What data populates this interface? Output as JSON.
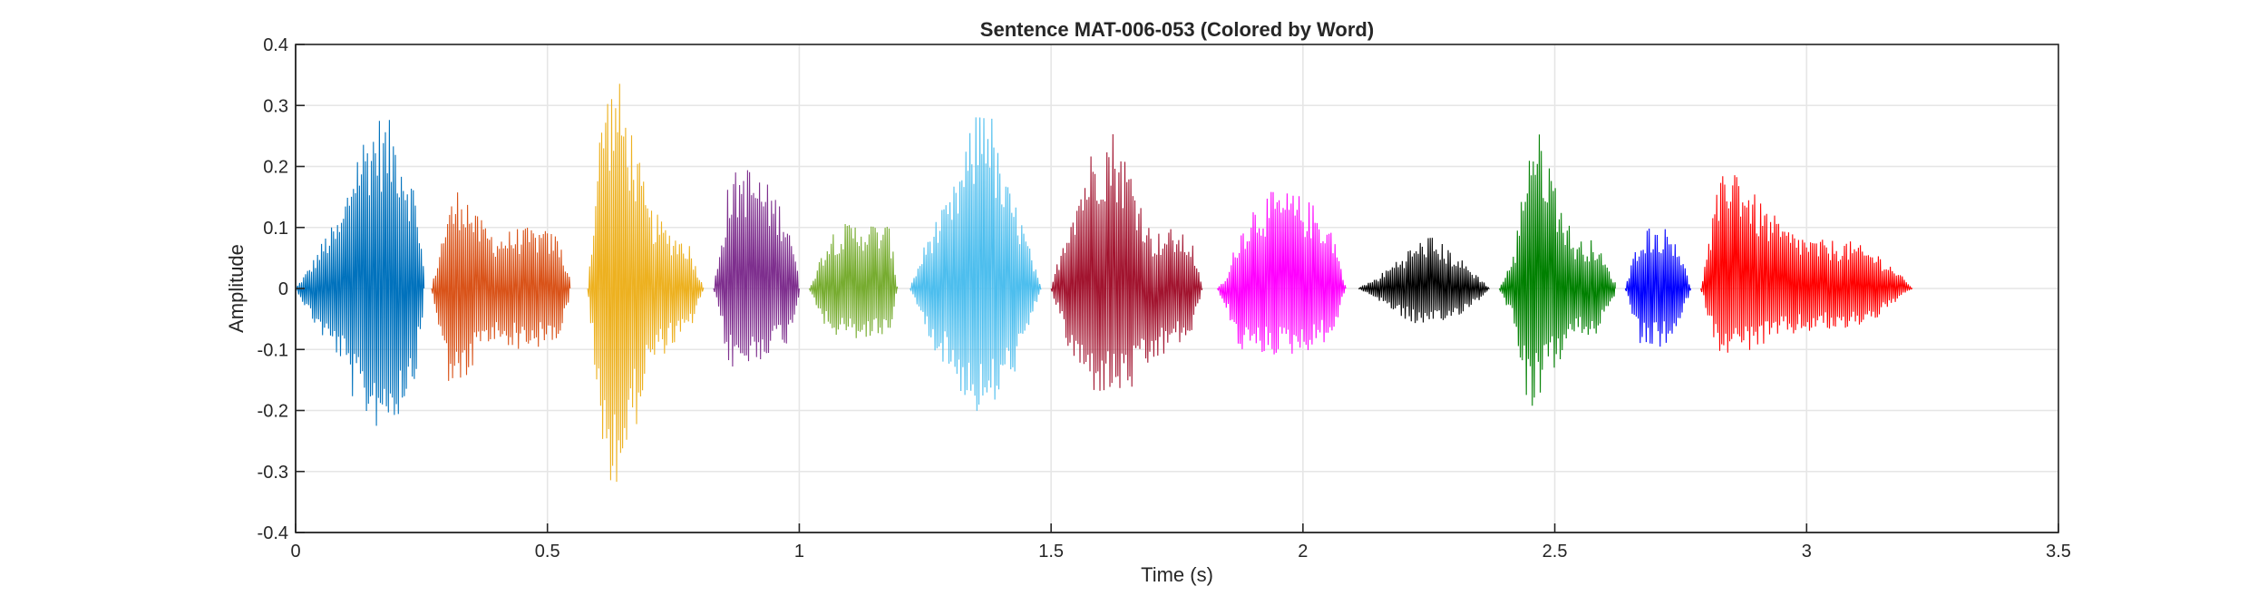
{
  "chart_data": {
    "type": "line",
    "title": "Sentence MAT-006-053 (Colored by Word)",
    "xlabel": "Time (s)",
    "ylabel": "Amplitude",
    "xlim": [
      0,
      3.5
    ],
    "ylim": [
      -0.4,
      0.4
    ],
    "xticks": [
      "0",
      "0.5",
      "1",
      "1.5",
      "2",
      "2.5",
      "3",
      "3.5"
    ],
    "yticks": [
      "0.4",
      "0.3",
      "0.2",
      "0.1",
      "0",
      "-0.1",
      "-0.2",
      "-0.3",
      "-0.4"
    ],
    "xtick_values": [
      0,
      0.5,
      1,
      1.5,
      2,
      2.5,
      3,
      3.5
    ],
    "ytick_values": [
      0.4,
      0.3,
      0.2,
      0.1,
      0,
      -0.1,
      -0.2,
      -0.3,
      -0.4
    ],
    "grid": true,
    "segments": [
      {
        "color": "#0072BD",
        "x": [
          0.0,
          0.03,
          0.06,
          0.09,
          0.12,
          0.16,
          0.2,
          0.24,
          0.255
        ],
        "ymax": [
          0.0,
          0.04,
          0.09,
          0.12,
          0.24,
          0.29,
          0.27,
          0.16,
          0.03
        ],
        "ymin": [
          0.0,
          -0.05,
          -0.09,
          -0.12,
          -0.2,
          -0.23,
          -0.22,
          -0.14,
          -0.03
        ]
      },
      {
        "color": "#D95319",
        "x": [
          0.27,
          0.3,
          0.33,
          0.36,
          0.4,
          0.44,
          0.48,
          0.52,
          0.545
        ],
        "ymax": [
          0.0,
          0.13,
          0.18,
          0.12,
          0.09,
          0.1,
          0.1,
          0.09,
          0.02
        ],
        "ymin": [
          0.0,
          -0.15,
          -0.18,
          -0.11,
          -0.09,
          -0.1,
          -0.1,
          -0.09,
          -0.02
        ]
      },
      {
        "color": "#EDB120",
        "x": [
          0.58,
          0.61,
          0.64,
          0.67,
          0.7,
          0.74,
          0.78,
          0.81
        ],
        "ymax": [
          0.0,
          0.33,
          0.35,
          0.26,
          0.14,
          0.1,
          0.08,
          0.0
        ],
        "ymin": [
          0.0,
          -0.3,
          -0.33,
          -0.25,
          -0.14,
          -0.1,
          -0.08,
          0.0
        ]
      },
      {
        "color": "#7E2F8E",
        "x": [
          0.83,
          0.86,
          0.89,
          0.92,
          0.95,
          0.98,
          1.0
        ],
        "ymax": [
          0.0,
          0.18,
          0.21,
          0.19,
          0.16,
          0.12,
          0.01
        ],
        "ymin": [
          0.0,
          -0.13,
          -0.14,
          -0.12,
          -0.1,
          -0.09,
          -0.01
        ]
      },
      {
        "color": "#77AC30",
        "x": [
          1.02,
          1.06,
          1.1,
          1.14,
          1.18,
          1.195
        ],
        "ymax": [
          0.0,
          0.095,
          0.11,
          0.11,
          0.105,
          0.0
        ],
        "ymin": [
          0.0,
          -0.08,
          -0.085,
          -0.085,
          -0.075,
          0.0
        ]
      },
      {
        "color": "#4DBEEE",
        "x": [
          1.22,
          1.26,
          1.3,
          1.34,
          1.37,
          1.4,
          1.44,
          1.48
        ],
        "ymax": [
          0.0,
          0.1,
          0.15,
          0.26,
          0.35,
          0.2,
          0.12,
          0.0
        ],
        "ymin": [
          0.0,
          -0.09,
          -0.14,
          -0.2,
          -0.22,
          -0.18,
          -0.12,
          0.0
        ]
      },
      {
        "color": "#A2142F",
        "x": [
          1.5,
          1.54,
          1.58,
          1.62,
          1.66,
          1.7,
          1.74,
          1.78,
          1.8
        ],
        "ymax": [
          0.0,
          0.14,
          0.23,
          0.27,
          0.2,
          0.09,
          0.1,
          0.08,
          0.0
        ],
        "ymin": [
          0.0,
          -0.12,
          -0.17,
          -0.18,
          -0.17,
          -0.13,
          -0.1,
          -0.08,
          0.0
        ]
      },
      {
        "color": "#FF00FF",
        "x": [
          1.83,
          1.85,
          1.87,
          1.9,
          1.94,
          1.98,
          2.02,
          2.06,
          2.085
        ],
        "ymax": [
          0.0,
          0.02,
          0.09,
          0.14,
          0.16,
          0.16,
          0.14,
          0.1,
          0.0
        ],
        "ymin": [
          0.0,
          -0.04,
          -0.1,
          -0.11,
          -0.11,
          -0.11,
          -0.1,
          -0.08,
          0.0
        ]
      },
      {
        "color": "#000000",
        "x": [
          2.11,
          2.15,
          2.2,
          2.25,
          2.3,
          2.35,
          2.37
        ],
        "ymax": [
          0.0,
          0.02,
          0.06,
          0.09,
          0.06,
          0.02,
          0.0
        ],
        "ymin": [
          0.0,
          -0.02,
          -0.05,
          -0.07,
          -0.05,
          -0.02,
          0.0
        ]
      },
      {
        "color": "#008000",
        "x": [
          2.39,
          2.42,
          2.45,
          2.48,
          2.51,
          2.54,
          2.58,
          2.62
        ],
        "ymax": [
          0.0,
          0.06,
          0.27,
          0.25,
          0.15,
          0.08,
          0.08,
          0.01
        ],
        "ymin": [
          0.0,
          -0.06,
          -0.21,
          -0.16,
          -0.12,
          -0.08,
          -0.08,
          -0.01
        ]
      },
      {
        "color": "#0000FF",
        "x": [
          2.64,
          2.67,
          2.7,
          2.74,
          2.77
        ],
        "ymax": [
          0.0,
          0.1,
          0.105,
          0.095,
          0.0
        ],
        "ymin": [
          0.0,
          -0.1,
          -0.1,
          -0.09,
          0.0
        ]
      },
      {
        "color": "#FF0000",
        "x": [
          2.79,
          2.82,
          2.85,
          2.9,
          2.96,
          3.02,
          3.08,
          3.14,
          3.18,
          3.21
        ],
        "ymax": [
          0.0,
          0.15,
          0.23,
          0.15,
          0.1,
          0.08,
          0.08,
          0.06,
          0.03,
          0.0
        ],
        "ymin": [
          0.0,
          -0.1,
          -0.11,
          -0.1,
          -0.08,
          -0.07,
          -0.07,
          -0.05,
          -0.02,
          0.0
        ]
      }
    ]
  }
}
